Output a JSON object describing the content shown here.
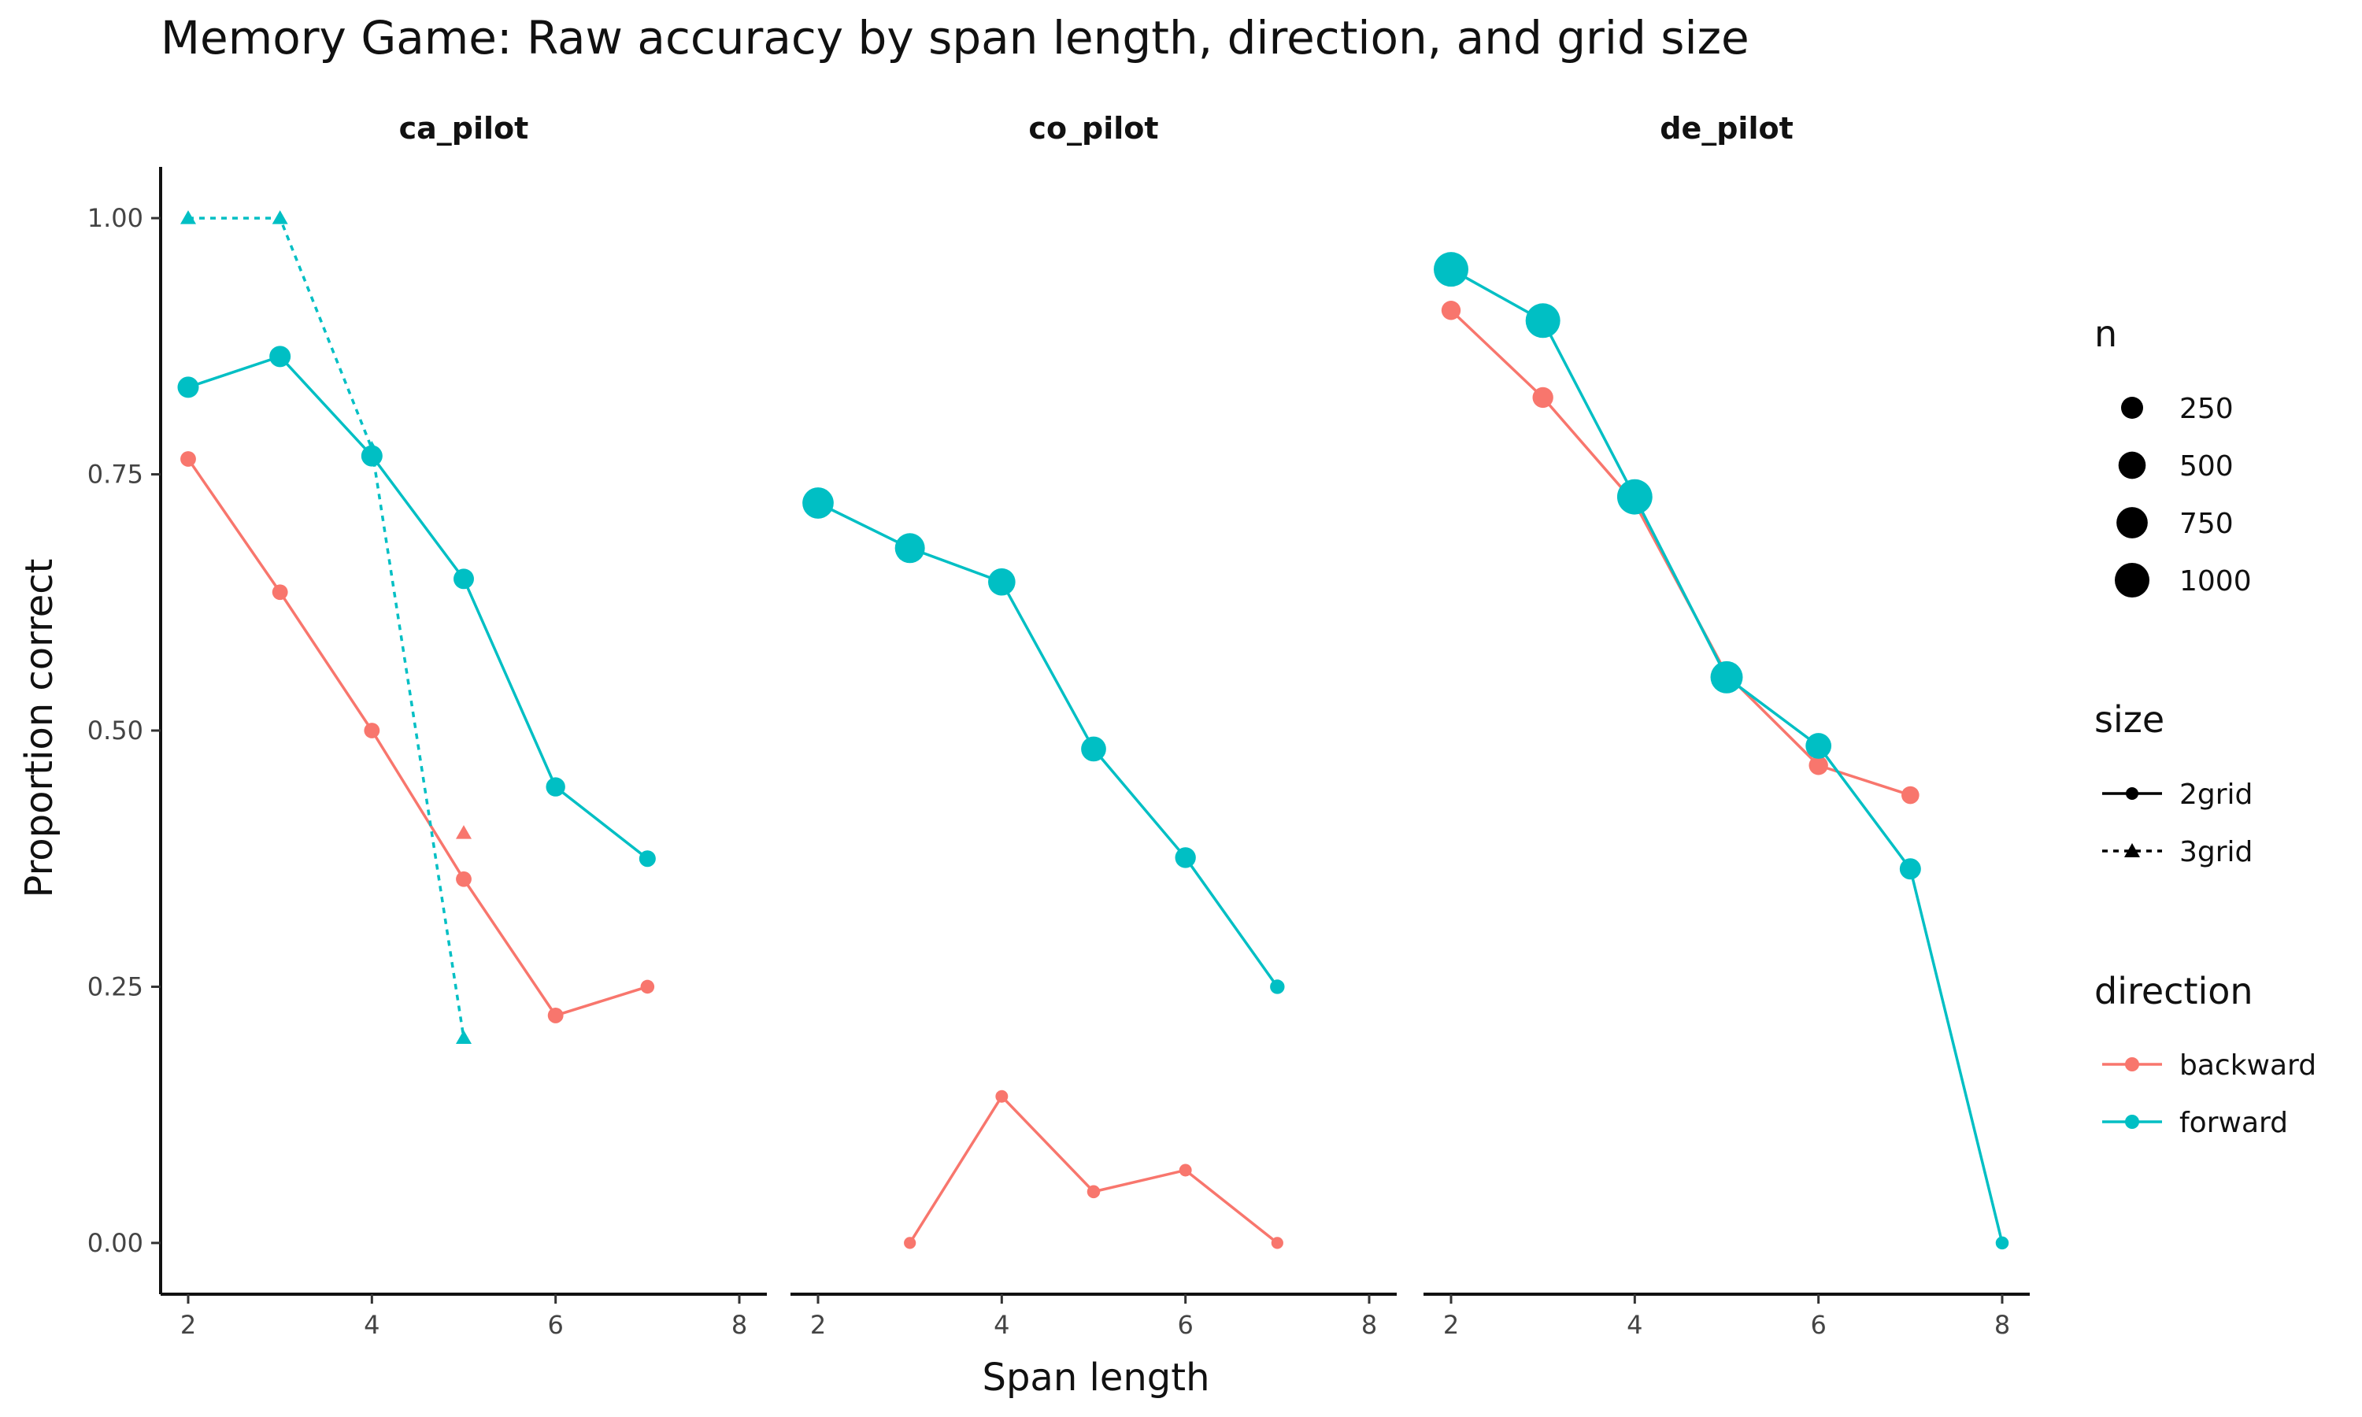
{
  "chart_data": {
    "type": "line",
    "title": "Memory Game: Raw accuracy by span length, direction, and grid size",
    "xlabel": "Span length",
    "ylabel": "Proportion correct",
    "xlim": [
      1.7,
      8.3
    ],
    "ylim": [
      -0.05,
      1.05
    ],
    "x_ticks": [
      "2",
      "4",
      "6",
      "8"
    ],
    "y_ticks": [
      "0.00",
      "0.25",
      "0.50",
      "0.75",
      "1.00"
    ],
    "grid": false,
    "legend_position": "right",
    "colors": {
      "backward": "#F8766D",
      "forward": "#00BFC4"
    },
    "panels": [
      {
        "name": "ca_pilot",
        "series": [
          {
            "direction": "backward",
            "size": "2grid",
            "points": [
              {
                "x": 2,
                "y": 0.765,
                "n": 60
              },
              {
                "x": 3,
                "y": 0.635,
                "n": 60
              },
              {
                "x": 4,
                "y": 0.5,
                "n": 60
              },
              {
                "x": 5,
                "y": 0.355,
                "n": 60
              },
              {
                "x": 6,
                "y": 0.222,
                "n": 60
              },
              {
                "x": 7,
                "y": 0.25,
                "n": 30
              }
            ]
          },
          {
            "direction": "backward",
            "size": "3grid",
            "points": [
              {
                "x": 5,
                "y": 0.4,
                "n": 10
              }
            ]
          },
          {
            "direction": "forward",
            "size": "2grid",
            "points": [
              {
                "x": 2,
                "y": 0.835,
                "n": 220
              },
              {
                "x": 3,
                "y": 0.865,
                "n": 220
              },
              {
                "x": 4,
                "y": 0.768,
                "n": 220
              },
              {
                "x": 5,
                "y": 0.648,
                "n": 190
              },
              {
                "x": 6,
                "y": 0.445,
                "n": 150
              },
              {
                "x": 7,
                "y": 0.375,
                "n": 80
              }
            ]
          },
          {
            "direction": "forward",
            "size": "3grid",
            "points": [
              {
                "x": 2,
                "y": 1.0,
                "n": 10
              },
              {
                "x": 3,
                "y": 1.0,
                "n": 10
              },
              {
                "x": 4,
                "y": 0.775,
                "n": 10
              },
              {
                "x": 5,
                "y": 0.2,
                "n": 10
              }
            ]
          }
        ]
      },
      {
        "name": "co_pilot",
        "series": [
          {
            "direction": "backward",
            "size": "2grid",
            "points": [
              {
                "x": 3,
                "y": 0.0,
                "n": 10
              },
              {
                "x": 4,
                "y": 0.143,
                "n": 15
              },
              {
                "x": 5,
                "y": 0.05,
                "n": 20
              },
              {
                "x": 6,
                "y": 0.071,
                "n": 15
              },
              {
                "x": 7,
                "y": 0.0,
                "n": 10
              }
            ]
          },
          {
            "direction": "forward",
            "size": "2grid",
            "points": [
              {
                "x": 2,
                "y": 0.722,
                "n": 750
              },
              {
                "x": 3,
                "y": 0.678,
                "n": 660
              },
              {
                "x": 4,
                "y": 0.645,
                "n": 500
              },
              {
                "x": 5,
                "y": 0.482,
                "n": 380
              },
              {
                "x": 6,
                "y": 0.376,
                "n": 200
              },
              {
                "x": 7,
                "y": 0.25,
                "n": 40
              }
            ]
          }
        ]
      },
      {
        "name": "de_pilot",
        "series": [
          {
            "direction": "backward",
            "size": "2grid",
            "points": [
              {
                "x": 2,
                "y": 0.91,
                "n": 150
              },
              {
                "x": 3,
                "y": 0.825,
                "n": 200
              },
              {
                "x": 4,
                "y": 0.722,
                "n": 190
              },
              {
                "x": 5,
                "y": 0.555,
                "n": 170
              },
              {
                "x": 6,
                "y": 0.466,
                "n": 150
              },
              {
                "x": 7,
                "y": 0.437,
                "n": 110
              }
            ]
          },
          {
            "direction": "forward",
            "size": "2grid",
            "points": [
              {
                "x": 2,
                "y": 0.95,
                "n": 1000
              },
              {
                "x": 3,
                "y": 0.9,
                "n": 1000
              },
              {
                "x": 4,
                "y": 0.728,
                "n": 1050
              },
              {
                "x": 5,
                "y": 0.552,
                "n": 820
              },
              {
                "x": 6,
                "y": 0.485,
                "n": 420
              },
              {
                "x": 7,
                "y": 0.365,
                "n": 220
              },
              {
                "x": 8,
                "y": 0.0,
                "n": 20
              }
            ]
          }
        ]
      }
    ],
    "legend": {
      "n": {
        "title": "n",
        "values": [
          "250",
          "500",
          "750",
          "1000"
        ]
      },
      "size": {
        "title": "size",
        "values": [
          "2grid",
          "3grid"
        ]
      },
      "direction": {
        "title": "direction",
        "values": [
          "backward",
          "forward"
        ]
      }
    }
  }
}
